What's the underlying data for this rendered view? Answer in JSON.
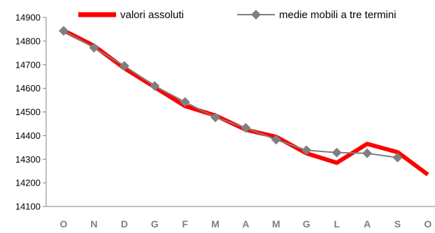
{
  "chart_data": {
    "type": "line",
    "categories": [
      "O",
      "N",
      "D",
      "G",
      "F",
      "M",
      "A",
      "M",
      "G",
      "L",
      "A",
      "S",
      "O"
    ],
    "ylim": [
      14100,
      14900
    ],
    "yticks": [
      14100,
      14200,
      14300,
      14400,
      14500,
      14600,
      14700,
      14800,
      14900
    ],
    "grid": false,
    "legend_position": "top",
    "series": [
      {
        "name": "valori assoluti",
        "color": "#ff0000",
        "marker": "none",
        "values": [
          14845,
          14780,
          14685,
          14605,
          14525,
          14485,
          14425,
          14395,
          14325,
          14285,
          14365,
          14330,
          14235
        ]
      },
      {
        "name": "medie mobili a tre termini",
        "color": "#7f7f7f",
        "marker": "diamond",
        "values": [
          14843,
          14772,
          14695,
          14610,
          14542,
          14477,
          14433,
          14383,
          14338,
          14328,
          14325,
          14307,
          null
        ]
      }
    ]
  }
}
